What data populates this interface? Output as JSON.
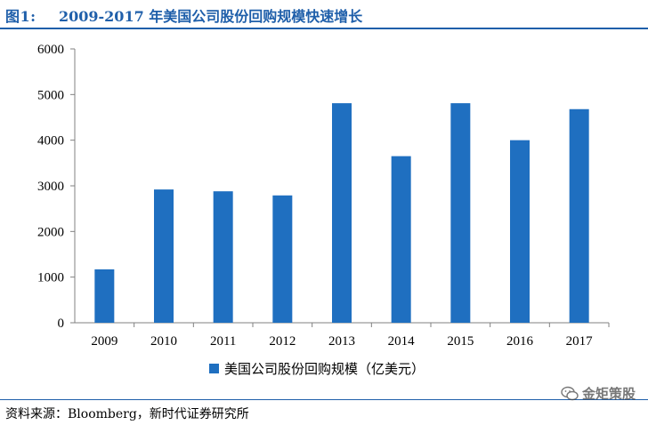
{
  "header": {
    "figure_label": "图1:",
    "title": "2009-2017 年美国公司股份回购规模快速增长"
  },
  "chart_data": {
    "type": "bar",
    "title": "2009-2017 年美国公司股份回购规模快速增长",
    "categories": [
      "2009",
      "2010",
      "2011",
      "2012",
      "2013",
      "2014",
      "2015",
      "2016",
      "2017"
    ],
    "series": [
      {
        "name": "美国公司股份回购规模（亿美元）",
        "values": [
          1170,
          2920,
          2880,
          2790,
          4810,
          3650,
          4810,
          4000,
          4680
        ]
      }
    ],
    "ylim": [
      0,
      6000
    ],
    "yticks": [
      0,
      1000,
      2000,
      3000,
      4000,
      5000,
      6000
    ],
    "xlabel": "",
    "ylabel": "",
    "legend_position": "bottom",
    "bar_color": "#1f6fc0"
  },
  "footer": {
    "source": "资料来源：Bloomberg，新时代证券研究所"
  },
  "watermark": {
    "text": "金矩策股",
    "icon": "wechat-icon"
  },
  "colors": {
    "accent": "#1f5faa",
    "bar": "#1f6fc0"
  }
}
